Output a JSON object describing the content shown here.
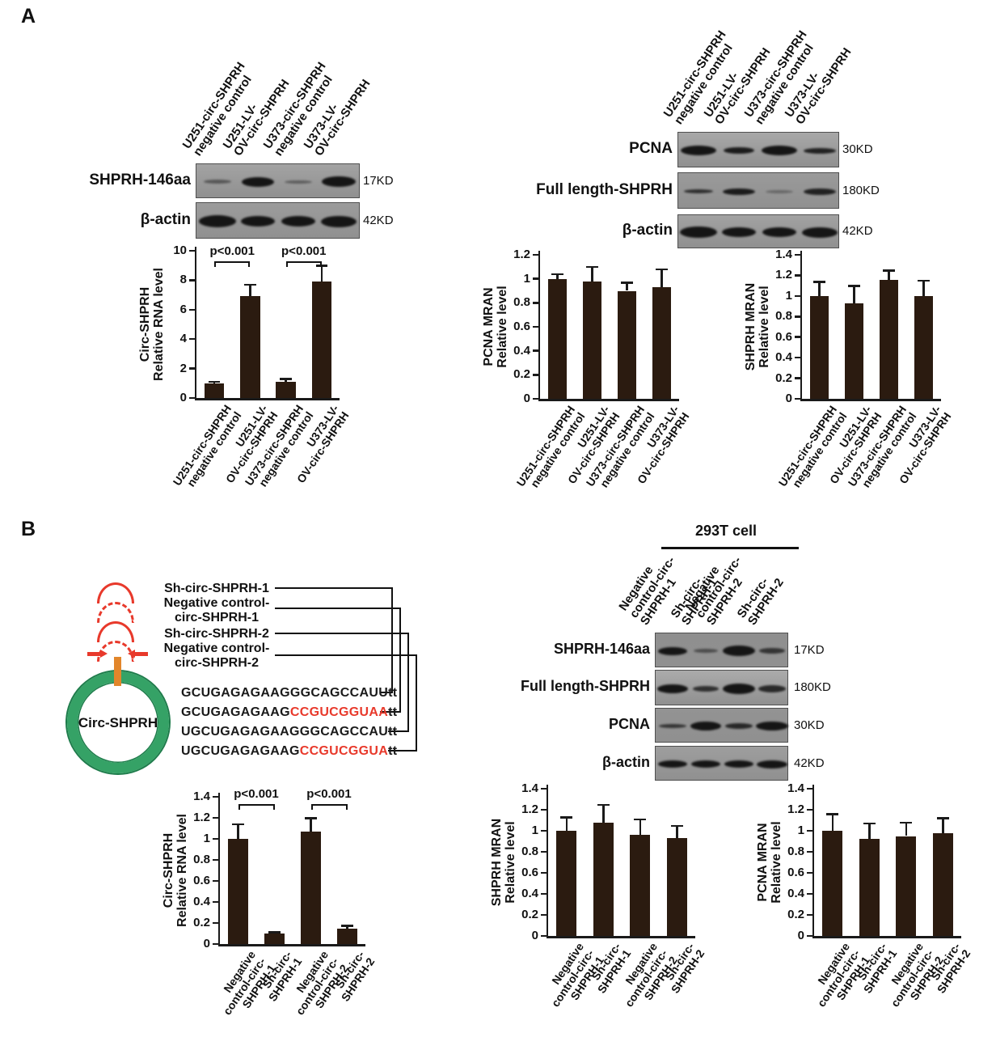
{
  "figure": {
    "panel_a_label": "A",
    "panel_b_label": "B"
  },
  "lane_label_sets": {
    "overexpression": [
      [
        "U251-circ-SHPRH",
        "negative control"
      ],
      [
        "U251-LV-",
        "OV-circ-SHPRH"
      ],
      [
        "U373-circ-SHPRH",
        "negative control"
      ],
      [
        "U373-LV-",
        "OV-circ-SHPRH"
      ]
    ],
    "knockdown": [
      [
        "Negative",
        "control-circ-",
        "SHPRH-1"
      ],
      [
        "Sh-circ-",
        "SHPRH-1"
      ],
      [
        "Negative",
        "control-circ-",
        "SHPRH-2"
      ],
      [
        "Sh-circ-",
        "SHPRH-2"
      ]
    ]
  },
  "blots": {
    "a_left": {
      "lane_set": "overexpression",
      "rows": [
        {
          "label": "SHPRH-146aa",
          "kd": "17KD",
          "bands": [
            [
              34,
              5,
              0.5
            ],
            [
              40,
              12,
              1
            ],
            [
              34,
              4,
              0.45
            ],
            [
              42,
              13,
              1
            ]
          ]
        },
        {
          "label": "β-actin",
          "kd": "42KD",
          "bands": [
            [
              46,
              15,
              1
            ],
            [
              42,
              13,
              1
            ],
            [
              42,
              13,
              1
            ],
            [
              44,
              14,
              1
            ]
          ]
        }
      ]
    },
    "a_right": {
      "lane_set": "overexpression",
      "rows": [
        {
          "label": "PCNA",
          "kd": "30KD",
          "bands": [
            [
              44,
              12,
              1
            ],
            [
              38,
              8,
              0.95
            ],
            [
              44,
              12,
              1
            ],
            [
              40,
              7,
              0.9
            ]
          ]
        },
        {
          "label": "Full length-SHPRH",
          "kd": "180KD",
          "bands": [
            [
              36,
              5,
              0.8
            ],
            [
              40,
              8,
              0.95
            ],
            [
              34,
              4,
              0.35
            ],
            [
              40,
              8,
              0.9
            ]
          ]
        },
        {
          "label": "β-actin",
          "kd": "42KD",
          "bands": [
            [
              46,
              14,
              1
            ],
            [
              42,
              12,
              1
            ],
            [
              42,
              12,
              1
            ],
            [
              44,
              13,
              1
            ]
          ]
        }
      ]
    },
    "b_right": {
      "lane_set": "knockdown",
      "header": "293T cell",
      "rows": [
        {
          "label": "SHPRH-146aa",
          "kd": "17KD",
          "bands": [
            [
              36,
              10,
              1
            ],
            [
              30,
              5,
              0.55
            ],
            [
              40,
              13,
              1
            ],
            [
              32,
              7,
              0.75
            ]
          ]
        },
        {
          "label": "Full length-SHPRH",
          "kd": "180KD",
          "bands": [
            [
              38,
              11,
              1
            ],
            [
              32,
              7,
              0.8
            ],
            [
              40,
              13,
              1
            ],
            [
              34,
              9,
              0.85
            ]
          ]
        },
        {
          "label": "PCNA",
          "kd": "30KD",
          "bands": [
            [
              34,
              5,
              0.75
            ],
            [
              38,
              11,
              1
            ],
            [
              34,
              7,
              0.85
            ],
            [
              40,
              11,
              1
            ]
          ]
        },
        {
          "label": "β-actin",
          "kd": "42KD",
          "bands": [
            [
              36,
              9,
              1
            ],
            [
              36,
              9,
              1
            ],
            [
              36,
              9,
              1
            ],
            [
              38,
              10,
              1
            ]
          ]
        }
      ]
    }
  },
  "diagram": {
    "circle_label": "Circ-SHPRH",
    "labels": [
      {
        "lines": [
          "Sh-circ-SHPRH-1"
        ]
      },
      {
        "lines": [
          "Negative control-",
          "circ-SHPRH-1"
        ]
      },
      {
        "lines": [
          "Sh-circ-SHPRH-2"
        ]
      },
      {
        "lines": [
          "Negative control-",
          "circ-SHPRH-2"
        ]
      }
    ],
    "sequences": [
      {
        "segments": [
          {
            "text": "GCUGAGAGAAGGGCAGCCAUU",
            "red": false
          },
          {
            "text": "tt",
            "red": false
          }
        ]
      },
      {
        "segments": [
          {
            "text": "GCUGAGAGAAG",
            "red": false
          },
          {
            "text": "CCGUCGGUAA",
            "red": true
          },
          {
            "text": "tt",
            "red": false
          }
        ]
      },
      {
        "segments": [
          {
            "text": "UGCUGAGAGAAGGGCAGCCAU",
            "red": false
          },
          {
            "text": "tt",
            "red": false
          }
        ]
      },
      {
        "segments": [
          {
            "text": "UGCUGAGAGAAG",
            "red": false
          },
          {
            "text": "CCGUCGGUA",
            "red": true
          },
          {
            "text": "tt",
            "red": false
          }
        ]
      }
    ],
    "colors": {
      "ring_green": "#35A266",
      "ring_green_dark": "#1E7C4B",
      "junction_orange": "#E2862B",
      "sh_red": "#E8392B"
    }
  },
  "bar_color": "#2B1B10",
  "chart_data": [
    {
      "id": "a_circ",
      "type": "bar",
      "ylabel": [
        "Circ-SHPRH",
        "Relative RNA level"
      ],
      "ylim": [
        0,
        10
      ],
      "ytick": 2,
      "grid": false,
      "lane_set": "overexpression",
      "values": [
        1.0,
        6.9,
        1.1,
        7.9
      ],
      "errors": [
        0.1,
        0.8,
        0.2,
        1.1
      ],
      "sig": [
        {
          "pair": [
            0,
            1
          ],
          "text": "p<0.001"
        },
        {
          "pair": [
            2,
            3
          ],
          "text": "p<0.001"
        }
      ]
    },
    {
      "id": "a_pcna",
      "type": "bar",
      "ylabel": [
        "PCNA MRAN",
        "Relative level"
      ],
      "ylim": [
        0,
        1.2
      ],
      "ytick": 0.2,
      "grid": false,
      "lane_set": "overexpression",
      "values": [
        1.0,
        0.98,
        0.9,
        0.93
      ],
      "errors": [
        0.04,
        0.12,
        0.07,
        0.15
      ],
      "sig": []
    },
    {
      "id": "a_shprh",
      "type": "bar",
      "ylabel": [
        "SHPRH MRAN",
        "Relative level"
      ],
      "ylim": [
        0,
        1.4
      ],
      "ytick": 0.2,
      "grid": false,
      "lane_set": "overexpression",
      "values": [
        1.0,
        0.93,
        1.16,
        1.0
      ],
      "errors": [
        0.14,
        0.17,
        0.09,
        0.15
      ],
      "sig": []
    },
    {
      "id": "b_circ",
      "type": "bar",
      "ylabel": [
        "Circ-SHPRH",
        "Relative RNA level"
      ],
      "ylim": [
        0,
        1.4
      ],
      "ytick": 0.2,
      "grid": false,
      "lane_set": "knockdown",
      "values": [
        1.0,
        0.1,
        1.07,
        0.15
      ],
      "errors": [
        0.14,
        0.015,
        0.13,
        0.025
      ],
      "sig": [
        {
          "pair": [
            0,
            1
          ],
          "text": "p<0.001"
        },
        {
          "pair": [
            2,
            3
          ],
          "text": "p<0.001"
        }
      ]
    },
    {
      "id": "b_shprh",
      "type": "bar",
      "ylabel": [
        "SHPRH MRAN",
        "Relative level"
      ],
      "ylim": [
        0,
        1.4
      ],
      "ytick": 0.2,
      "grid": false,
      "lane_set": "knockdown",
      "values": [
        1.0,
        1.08,
        0.96,
        0.93
      ],
      "errors": [
        0.13,
        0.17,
        0.15,
        0.12
      ],
      "sig": []
    },
    {
      "id": "b_pcna",
      "type": "bar",
      "ylabel": [
        "PCNA MRAN",
        "Relative level"
      ],
      "ylim": [
        0,
        1.4
      ],
      "ytick": 0.2,
      "grid": false,
      "lane_set": "knockdown",
      "values": [
        1.0,
        0.92,
        0.95,
        0.98
      ],
      "errors": [
        0.16,
        0.15,
        0.13,
        0.14
      ],
      "sig": []
    }
  ]
}
